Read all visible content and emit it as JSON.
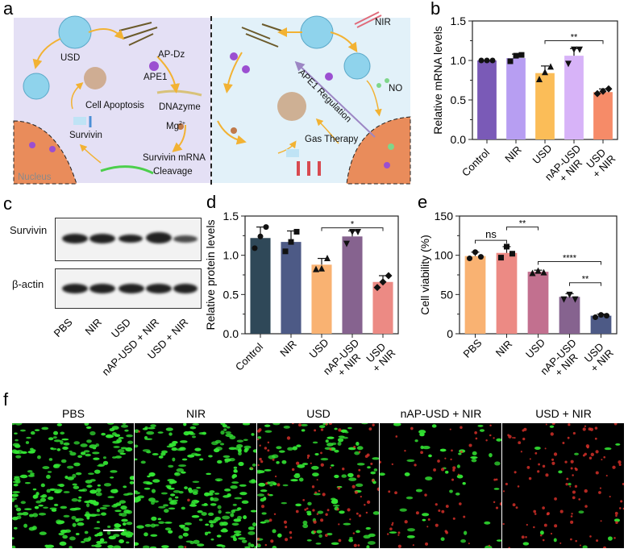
{
  "panels": {
    "a": "a",
    "b": "b",
    "c": "c",
    "d": "d",
    "e": "e",
    "f": "f"
  },
  "diagram": {
    "left": {
      "usd": "USD",
      "ap_dz": "AP-Dz",
      "ape1": "APE1",
      "dnazyme": "DNAzyme",
      "mg": "Mg",
      "mg_sup": "2+",
      "cell_apoptosis": "Cell Apoptosis",
      "survivin": "Survivin",
      "cleavage_1": "Survivin mRNA",
      "cleavage_2": "Cleavage",
      "nucleus": "Nucleus"
    },
    "right": {
      "nir": "NIR",
      "no": "NO",
      "ape1_regulation": "APE1 Regulation",
      "gas_therapy": "Gas Therapy"
    },
    "colors": {
      "left_bg": "#e4e0f5",
      "right_bg": "#e2f1f9",
      "nucleus": "#e98c5b",
      "arrow": "#f2b233",
      "ape1": "#9b4fd1"
    }
  },
  "western": {
    "rows": [
      "Survivin",
      "β-actin"
    ],
    "lanes": [
      "PBS",
      "NIR",
      "USD",
      "nAP-USD + NIR",
      "USD + NIR"
    ]
  },
  "chart_data": [
    {
      "id": "b",
      "type": "bar",
      "ylabel": "Relative mRNA levels",
      "ylim": [
        0,
        1.5
      ],
      "yticks": [
        "0.0",
        "0.5",
        "1.0",
        "1.5"
      ],
      "ytickvals": [
        0,
        0.5,
        1.0,
        1.5
      ],
      "categories": [
        "Control",
        "NIR",
        "USD",
        "nAP-USD\n+ NIR",
        "USD\n+ NIR"
      ],
      "values": [
        1.0,
        1.03,
        0.84,
        1.06,
        0.6
      ],
      "errors": [
        0.0,
        0.05,
        0.09,
        0.09,
        0.04
      ],
      "points": [
        [
          1.0,
          1.0,
          1.0
        ],
        [
          0.99,
          1.06,
          1.07
        ],
        [
          0.76,
          0.85,
          0.92
        ],
        [
          0.96,
          1.14,
          1.14
        ],
        [
          0.58,
          0.61,
          0.64
        ]
      ],
      "markers": [
        "circle",
        "square",
        "triangle",
        "tri-down",
        "diamond"
      ],
      "colors": [
        "#7a5ab7",
        "#b79ef2",
        "#fbbd58",
        "#d7b3f8",
        "#f68b68"
      ],
      "significance": [
        {
          "from": 2,
          "to": 4,
          "label": "**",
          "level": 1.25
        }
      ]
    },
    {
      "id": "d",
      "type": "bar",
      "ylabel": "Relative protein levels",
      "ylim": [
        0,
        1.5
      ],
      "yticks": [
        "0.0",
        "0.5",
        "1.0",
        "1.5"
      ],
      "ytickvals": [
        0,
        0.5,
        1.0,
        1.5
      ],
      "categories": [
        "Control",
        "NIR",
        "USD",
        "nAP-USD\n+ NIR",
        "USD\n+ NIR"
      ],
      "values": [
        1.22,
        1.17,
        0.88,
        1.24,
        0.66
      ],
      "errors": [
        0.14,
        0.14,
        0.08,
        0.07,
        0.08
      ],
      "points": [
        [
          1.09,
          1.24,
          1.36
        ],
        [
          1.05,
          1.17,
          1.3
        ],
        [
          0.82,
          0.83,
          0.96
        ],
        [
          1.15,
          1.3,
          1.3
        ],
        [
          0.59,
          0.66,
          0.74
        ]
      ],
      "markers": [
        "circle",
        "square",
        "triangle",
        "tri-down",
        "diamond"
      ],
      "colors": [
        "#2f4858",
        "#4d5a86",
        "#f9b272",
        "#86638f",
        "#ec8a84"
      ],
      "significance": [
        {
          "from": 2,
          "to": 4,
          "label": "*",
          "level": 1.35
        }
      ]
    },
    {
      "id": "e",
      "type": "bar",
      "ylabel": "Cell viability (%)",
      "ylim": [
        0,
        150
      ],
      "yticks": [
        "0",
        "50",
        "100",
        "150"
      ],
      "ytickvals": [
        0,
        50,
        100,
        150
      ],
      "categories": [
        "PBS",
        "NIR",
        "USD",
        "nAP-USD\n+ NIR",
        "USD\n+ NIR"
      ],
      "values": [
        99,
        103,
        79,
        47,
        23
      ],
      "errors": [
        5,
        8,
        2,
        4,
        2
      ],
      "points": [
        [
          96,
          104,
          98
        ],
        [
          97,
          111,
          102
        ],
        [
          77,
          80,
          78
        ],
        [
          44,
          50,
          44
        ],
        [
          21,
          24,
          23
        ]
      ],
      "markers": [
        "circle",
        "square",
        "triangle",
        "tri-down",
        "circle"
      ],
      "colors": [
        "#f9b272",
        "#ec8a84",
        "#c2708f",
        "#86638f",
        "#4d5a86"
      ],
      "significance": [
        {
          "from": 0,
          "to": 1,
          "label": "ns",
          "level": 119
        },
        {
          "from": 1,
          "to": 2,
          "label": "**",
          "level": 136
        },
        {
          "from": 2,
          "to": 4,
          "label": "****",
          "level": 92
        },
        {
          "from": 3,
          "to": 4,
          "label": "**",
          "level": 65
        }
      ]
    }
  ],
  "fluorescence": {
    "titles": [
      "PBS",
      "NIR",
      "USD",
      "nAP-USD + NIR",
      "USD + NIR"
    ],
    "live_color": "#33e633",
    "dead_color": "#e0322a"
  }
}
